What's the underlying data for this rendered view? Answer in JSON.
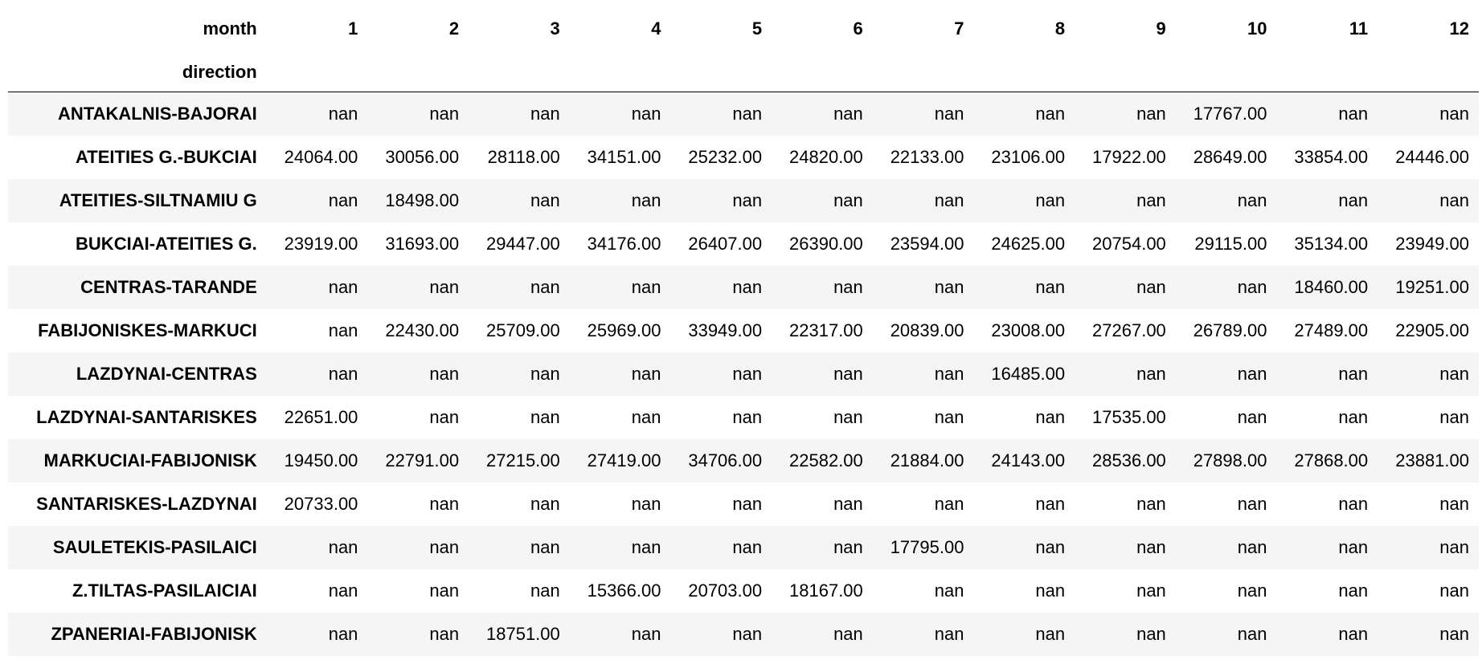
{
  "table": {
    "columns_name": "month",
    "index_name": "direction",
    "columns": [
      "1",
      "2",
      "3",
      "4",
      "5",
      "6",
      "7",
      "8",
      "9",
      "10",
      "11",
      "12"
    ],
    "rows": [
      {
        "label": "ANTAKALNIS-BAJORAI",
        "values": [
          "nan",
          "nan",
          "nan",
          "nan",
          "nan",
          "nan",
          "nan",
          "nan",
          "nan",
          "17767.00",
          "nan",
          "nan"
        ]
      },
      {
        "label": "ATEITIES G.-BUKCIAI",
        "values": [
          "24064.00",
          "30056.00",
          "28118.00",
          "34151.00",
          "25232.00",
          "24820.00",
          "22133.00",
          "23106.00",
          "17922.00",
          "28649.00",
          "33854.00",
          "24446.00"
        ]
      },
      {
        "label": "ATEITIES-SILTNAMIU G",
        "values": [
          "nan",
          "18498.00",
          "nan",
          "nan",
          "nan",
          "nan",
          "nan",
          "nan",
          "nan",
          "nan",
          "nan",
          "nan"
        ]
      },
      {
        "label": "BUKCIAI-ATEITIES G.",
        "values": [
          "23919.00",
          "31693.00",
          "29447.00",
          "34176.00",
          "26407.00",
          "26390.00",
          "23594.00",
          "24625.00",
          "20754.00",
          "29115.00",
          "35134.00",
          "23949.00"
        ]
      },
      {
        "label": "CENTRAS-TARANDE",
        "values": [
          "nan",
          "nan",
          "nan",
          "nan",
          "nan",
          "nan",
          "nan",
          "nan",
          "nan",
          "nan",
          "18460.00",
          "19251.00"
        ]
      },
      {
        "label": "FABIJONISKES-MARKUCI",
        "values": [
          "nan",
          "22430.00",
          "25709.00",
          "25969.00",
          "33949.00",
          "22317.00",
          "20839.00",
          "23008.00",
          "27267.00",
          "26789.00",
          "27489.00",
          "22905.00"
        ]
      },
      {
        "label": "LAZDYNAI-CENTRAS",
        "values": [
          "nan",
          "nan",
          "nan",
          "nan",
          "nan",
          "nan",
          "nan",
          "16485.00",
          "nan",
          "nan",
          "nan",
          "nan"
        ]
      },
      {
        "label": "LAZDYNAI-SANTARISKES",
        "values": [
          "22651.00",
          "nan",
          "nan",
          "nan",
          "nan",
          "nan",
          "nan",
          "nan",
          "17535.00",
          "nan",
          "nan",
          "nan"
        ]
      },
      {
        "label": "MARKUCIAI-FABIJONISK",
        "values": [
          "19450.00",
          "22791.00",
          "27215.00",
          "27419.00",
          "34706.00",
          "22582.00",
          "21884.00",
          "24143.00",
          "28536.00",
          "27898.00",
          "27868.00",
          "23881.00"
        ]
      },
      {
        "label": "SANTARISKES-LAZDYNAI",
        "values": [
          "20733.00",
          "nan",
          "nan",
          "nan",
          "nan",
          "nan",
          "nan",
          "nan",
          "nan",
          "nan",
          "nan",
          "nan"
        ]
      },
      {
        "label": "SAULETEKIS-PASILAICI",
        "values": [
          "nan",
          "nan",
          "nan",
          "nan",
          "nan",
          "nan",
          "17795.00",
          "nan",
          "nan",
          "nan",
          "nan",
          "nan"
        ]
      },
      {
        "label": "Z.TILTAS-PASILAICIAI",
        "values": [
          "nan",
          "nan",
          "nan",
          "15366.00",
          "20703.00",
          "18167.00",
          "nan",
          "nan",
          "nan",
          "nan",
          "nan",
          "nan"
        ]
      },
      {
        "label": "ZPANERIAI-FABIJONISK",
        "values": [
          "nan",
          "nan",
          "18751.00",
          "nan",
          "nan",
          "nan",
          "nan",
          "nan",
          "nan",
          "nan",
          "nan",
          "nan"
        ]
      }
    ]
  }
}
